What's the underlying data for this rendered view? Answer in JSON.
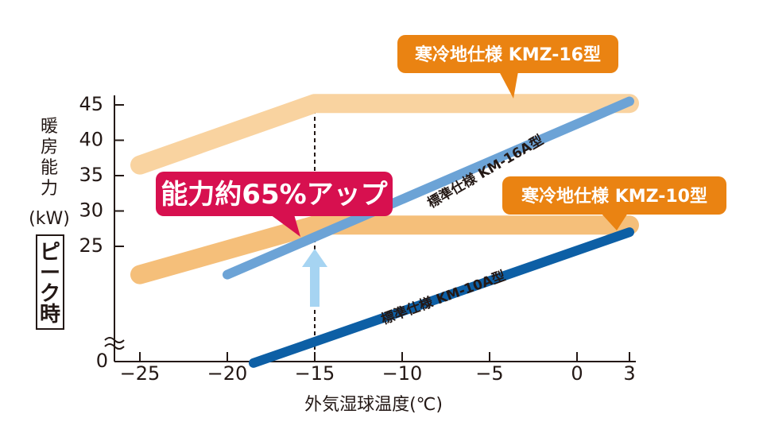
{
  "chart_data": {
    "type": "line",
    "xlabel": "外気湿球温度(℃)",
    "ylabel_lines": [
      "暖",
      "房",
      "能",
      "力",
      "(kW)"
    ],
    "peak_label": [
      "ピ",
      "ー",
      "ク",
      "時"
    ],
    "x_ticks": [
      -25,
      -20,
      -15,
      -10,
      -5,
      0,
      3
    ],
    "x_tick_labels": [
      "−25",
      "−20",
      "−15",
      "−10",
      "−5",
      "0",
      "3"
    ],
    "y_ticks": [
      25,
      30,
      35,
      40,
      45
    ],
    "y_tick_labels": [
      "25",
      "30",
      "35",
      "40",
      "45"
    ],
    "y_zero_label": "0",
    "xlim": [
      -26,
      3.4
    ],
    "reference_line_x": -15,
    "callout_text": "能力約65%アップ",
    "series": [
      {
        "name": "寒冷地仕様 KMZ-16型",
        "color": "#f9d3a0",
        "x": [
          -25,
          -15,
          3
        ],
        "y": [
          36.5,
          45.2,
          45.2
        ]
      },
      {
        "name": "寒冷地仕様 KMZ-10型",
        "color": "#f5bf7a",
        "x": [
          -25,
          -15,
          3
        ],
        "y": [
          21,
          28,
          28
        ]
      },
      {
        "name": "標準仕様 KM-16A型",
        "color": "#6ca3d6",
        "x": [
          -20,
          3
        ],
        "y": [
          21,
          45.5
        ]
      },
      {
        "name": "標準仕様 KM-10A型",
        "color": "#0d5fa5",
        "x": [
          -18.5,
          3
        ],
        "y": [
          8.5,
          27
        ]
      }
    ]
  }
}
